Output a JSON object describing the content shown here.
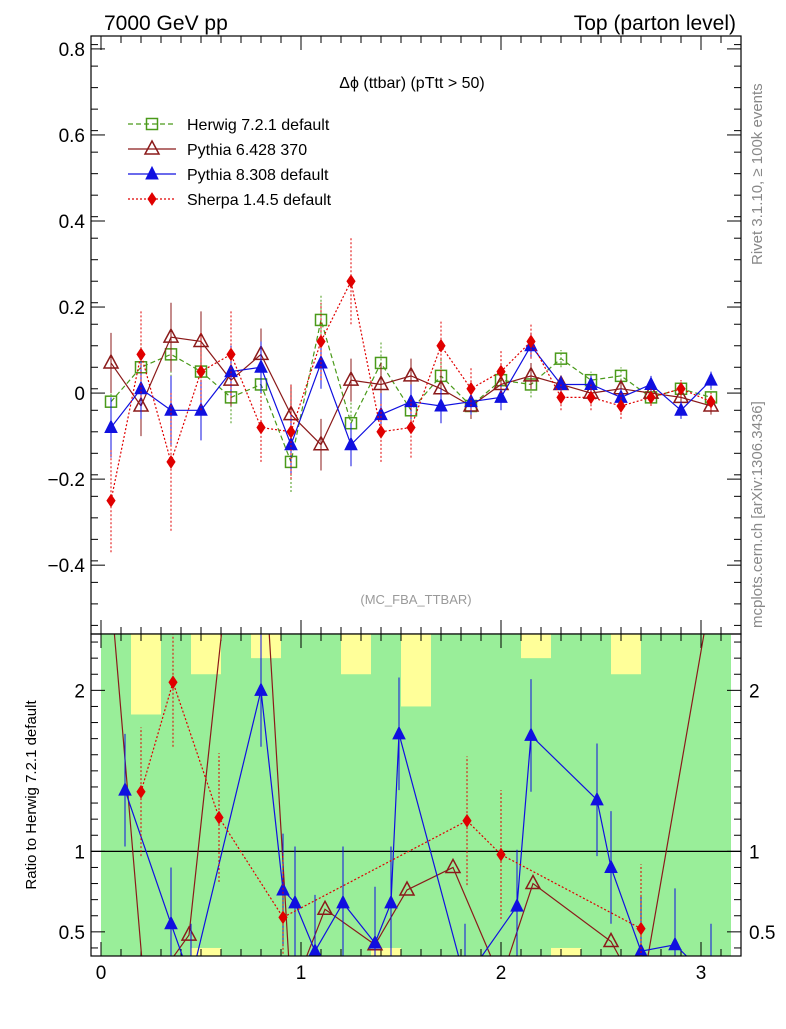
{
  "header": {
    "left": "7000 GeV pp",
    "right": "Top (parton level)"
  },
  "side_labels": {
    "rivet": "Rivet 3.1.10, ≥ 100k events",
    "mcplots": "mcplots.cern.ch [arXiv:1306.3436]"
  },
  "chart_data": [
    {
      "type": "line",
      "panel": "main",
      "title": "Δϕ (ttbar) (pTtt > 50)",
      "watermark": "(MC_FBA_TTBAR)",
      "xlabel": "",
      "ylabel": "",
      "xlim": [
        -0.05,
        3.2
      ],
      "ylim": [
        -0.56,
        0.83
      ],
      "y_ticks": [
        {
          "v": -0.4,
          "label": "−0.4"
        },
        {
          "v": -0.2,
          "label": "−0.2"
        },
        {
          "v": 0,
          "label": "0"
        },
        {
          "v": 0.2,
          "label": "0.2"
        },
        {
          "v": 0.4,
          "label": "0.4"
        },
        {
          "v": 0.6,
          "label": "0.6"
        },
        {
          "v": 0.8,
          "label": "0.8"
        }
      ],
      "legend_position": "top-left",
      "series": [
        {
          "name": "Herwig 7.2.1 default",
          "color": "#4a9a1a",
          "marker": "open-square",
          "dash": "5,3",
          "x": [
            0.05,
            0.2,
            0.35,
            0.5,
            0.65,
            0.8,
            0.95,
            1.1,
            1.25,
            1.4,
            1.55,
            1.7,
            1.85,
            2.0,
            2.15,
            2.3,
            2.45,
            2.6,
            2.75,
            2.9,
            3.05
          ],
          "y": [
            -0.02,
            0.06,
            0.09,
            0.05,
            -0.01,
            0.02,
            -0.16,
            0.17,
            -0.07,
            0.07,
            -0.04,
            0.04,
            -0.03,
            0.03,
            0.02,
            0.08,
            0.03,
            0.04,
            -0.01,
            0.01,
            -0.01
          ],
          "err": [
            0.07,
            0.06,
            0.08,
            0.07,
            0.06,
            0.05,
            0.07,
            0.06,
            0.05,
            0.05,
            0.04,
            0.04,
            0.03,
            0.03,
            0.03,
            0.02,
            0.02,
            0.02,
            0.02,
            0.02,
            0.02
          ]
        },
        {
          "name": "Pythia 6.428 370",
          "color": "#8b1a1a",
          "marker": "open-triangle",
          "dash": "",
          "x": [
            0.05,
            0.2,
            0.35,
            0.5,
            0.65,
            0.8,
            0.95,
            1.1,
            1.25,
            1.4,
            1.55,
            1.7,
            1.85,
            2.0,
            2.15,
            2.3,
            2.45,
            2.6,
            2.75,
            2.9,
            3.05
          ],
          "y": [
            0.07,
            -0.03,
            0.13,
            0.12,
            0.03,
            0.09,
            -0.05,
            -0.12,
            0.03,
            0.02,
            0.04,
            0.01,
            -0.03,
            0.02,
            0.04,
            0.02,
            0.0,
            0.01,
            0.0,
            -0.01,
            -0.03
          ],
          "err": [
            0.07,
            0.07,
            0.08,
            0.07,
            0.06,
            0.06,
            0.07,
            0.06,
            0.05,
            0.05,
            0.04,
            0.04,
            0.03,
            0.03,
            0.03,
            0.02,
            0.02,
            0.02,
            0.02,
            0.02,
            0.02
          ]
        },
        {
          "name": "Pythia 8.308 default",
          "color": "#1010e0",
          "marker": "filled-triangle",
          "dash": "",
          "x": [
            0.05,
            0.2,
            0.35,
            0.5,
            0.65,
            0.8,
            0.95,
            1.1,
            1.25,
            1.4,
            1.55,
            1.7,
            1.85,
            2.0,
            2.15,
            2.3,
            2.45,
            2.6,
            2.75,
            2.9,
            3.05
          ],
          "y": [
            -0.08,
            0.01,
            -0.04,
            -0.04,
            0.05,
            0.06,
            -0.12,
            0.07,
            -0.12,
            -0.05,
            -0.02,
            -0.03,
            -0.02,
            -0.01,
            0.11,
            0.02,
            0.02,
            -0.01,
            0.02,
            -0.04,
            0.03
          ],
          "err": [
            0.07,
            0.07,
            0.08,
            0.07,
            0.06,
            0.06,
            0.07,
            0.06,
            0.05,
            0.05,
            0.04,
            0.04,
            0.03,
            0.03,
            0.03,
            0.02,
            0.02,
            0.02,
            0.02,
            0.02,
            0.02
          ]
        },
        {
          "name": "Sherpa 1.4.5 default",
          "color": "#e00000",
          "marker": "filled-diamond",
          "dash": "2,2",
          "x": [
            0.05,
            0.2,
            0.35,
            0.5,
            0.65,
            0.8,
            0.95,
            1.1,
            1.25,
            1.4,
            1.55,
            1.7,
            1.85,
            2.0,
            2.15,
            2.3,
            2.45,
            2.6,
            2.75,
            2.9,
            3.05
          ],
          "y": [
            -0.25,
            0.09,
            -0.16,
            0.05,
            0.09,
            -0.08,
            -0.09,
            0.12,
            0.26,
            -0.09,
            -0.08,
            0.11,
            0.01,
            0.05,
            0.12,
            -0.01,
            -0.01,
            -0.03,
            -0.01,
            0.01,
            -0.02
          ],
          "err": [
            0.12,
            0.1,
            0.16,
            0.09,
            0.1,
            0.08,
            0.11,
            0.09,
            0.1,
            0.07,
            0.07,
            0.06,
            0.05,
            0.05,
            0.04,
            0.03,
            0.03,
            0.03,
            0.02,
            0.02,
            0.02
          ]
        }
      ]
    },
    {
      "type": "line",
      "panel": "ratio",
      "ylabel": "Ratio to Herwig 7.2.1 default",
      "ylim": [
        0.35,
        2.35
      ],
      "xlim": [
        -0.05,
        3.2
      ],
      "x_ticks": [
        {
          "v": 0,
          "label": "0"
        },
        {
          "v": 1,
          "label": "1"
        },
        {
          "v": 2,
          "label": "2"
        },
        {
          "v": 3,
          "label": "3"
        }
      ],
      "y_ticks": [
        {
          "v": 0.5,
          "label": "0.5"
        },
        {
          "v": 1,
          "label": "1"
        },
        {
          "v": 2,
          "label": "2"
        }
      ],
      "band_inner_color": "#99ee99",
      "band_outer_color": "#ffff99",
      "band_bins": [
        0.0,
        0.15,
        0.3,
        0.45,
        0.6,
        0.75,
        0.9,
        1.05,
        1.2,
        1.35,
        1.5,
        1.65,
        1.8,
        1.95,
        2.1,
        2.25,
        2.4,
        2.55,
        2.7,
        2.85,
        3.0,
        3.15
      ],
      "band_inner_lo": [
        0.35,
        0.35,
        0.35,
        0.4,
        0.35,
        0.35,
        0.35,
        0.35,
        0.35,
        0.4,
        0.35,
        0.35,
        0.35,
        0.35,
        0.35,
        0.4,
        0.35,
        0.35,
        0.35,
        0.35,
        0.35
      ],
      "band_inner_hi": [
        2.35,
        1.85,
        2.35,
        2.1,
        2.35,
        2.2,
        2.35,
        2.35,
        2.1,
        2.35,
        1.9,
        2.35,
        2.35,
        2.35,
        2.2,
        2.35,
        2.35,
        2.1,
        2.35,
        2.35,
        2.35
      ],
      "band_outer_lo": [
        0.35,
        0.35,
        0.35,
        0.35,
        0.35,
        0.35,
        0.35,
        0.35,
        0.35,
        0.35,
        0.35,
        0.35,
        0.35,
        0.35,
        0.35,
        0.35,
        0.35,
        0.35,
        0.35,
        0.35,
        0.35
      ],
      "band_outer_hi": [
        2.35,
        2.35,
        2.35,
        2.35,
        2.35,
        2.35,
        2.35,
        2.35,
        2.35,
        2.35,
        2.35,
        2.35,
        2.35,
        2.35,
        2.35,
        2.35,
        2.35,
        2.35,
        2.35,
        2.35,
        2.35
      ],
      "series": [
        {
          "name": "Pythia 6.428 370",
          "x": [
            0.05,
            0.22,
            0.44,
            0.65,
            0.8,
            0.95,
            1.12,
            1.37,
            1.53,
            1.76,
            2.0,
            2.16,
            2.55,
            2.7,
            3.05
          ],
          "y": [
            2.6,
            0.1,
            0.48,
            2.9,
            3.2,
            0.1,
            0.64,
            0.42,
            0.76,
            0.9,
            0.2,
            0.8,
            0.44,
            0.1,
            2.6
          ]
        },
        {
          "name": "Pythia 8.308 default",
          "x": [
            0.12,
            0.35,
            0.45,
            0.8,
            0.91,
            0.97,
            1.07,
            1.21,
            1.37,
            1.45,
            1.49,
            1.82,
            2.08,
            2.15,
            2.48,
            2.55,
            2.7,
            2.87,
            3.05
          ],
          "y": [
            1.38,
            0.55,
            0.2,
            2.0,
            0.76,
            0.68,
            0.38,
            0.68,
            0.43,
            0.68,
            1.73,
            0.2,
            0.66,
            1.72,
            1.32,
            0.9,
            0.38,
            0.42,
            0.2
          ],
          "err": 0.35
        },
        {
          "name": "Sherpa 1.4.5 default",
          "x": [
            0.2,
            0.36,
            0.59,
            0.91,
            1.83,
            2.0,
            2.7
          ],
          "y": [
            1.37,
            2.05,
            1.21,
            0.59,
            1.19,
            0.98,
            0.52
          ],
          "err": 0.4
        }
      ]
    }
  ]
}
